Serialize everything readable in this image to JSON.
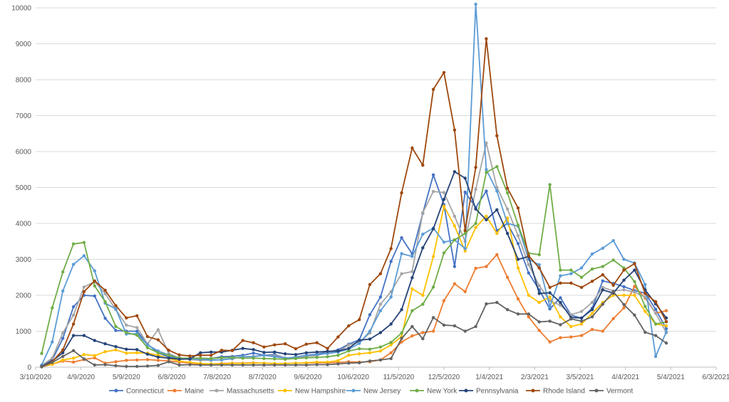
{
  "chart_data": {
    "type": "line",
    "title": "",
    "xlabel": "",
    "ylabel": "",
    "ylim": [
      0,
      10000
    ],
    "yticks": [
      0,
      1000,
      2000,
      3000,
      4000,
      5000,
      6000,
      7000,
      8000,
      9000,
      10000
    ],
    "xlim": [
      "2020-03-10",
      "2021-06-03"
    ],
    "xticks": [
      "3/10/2020",
      "4/9/2020",
      "5/9/2020",
      "6/8/2020",
      "7/8/2020",
      "8/7/2020",
      "9/6/2020",
      "10/6/2020",
      "11/5/2020",
      "12/5/2020",
      "1/4/2021",
      "2/3/2021",
      "3/5/2021",
      "4/4/2021",
      "5/4/2021",
      "6/3/2021"
    ],
    "grid": "horizontal",
    "legend": "bottom",
    "x": [
      "2020-03-14",
      "2020-03-21",
      "2020-03-28",
      "2020-04-04",
      "2020-04-11",
      "2020-04-18",
      "2020-04-25",
      "2020-05-02",
      "2020-05-09",
      "2020-05-16",
      "2020-05-23",
      "2020-05-30",
      "2020-06-06",
      "2020-06-13",
      "2020-06-20",
      "2020-06-27",
      "2020-07-04",
      "2020-07-11",
      "2020-07-18",
      "2020-07-25",
      "2020-08-01",
      "2020-08-08",
      "2020-08-15",
      "2020-08-22",
      "2020-08-29",
      "2020-09-05",
      "2020-09-12",
      "2020-09-19",
      "2020-09-26",
      "2020-10-03",
      "2020-10-10",
      "2020-10-17",
      "2020-10-24",
      "2020-10-31",
      "2020-11-07",
      "2020-11-14",
      "2020-11-21",
      "2020-11-28",
      "2020-12-05",
      "2020-12-12",
      "2020-12-19",
      "2020-12-26",
      "2021-01-02",
      "2021-01-09",
      "2021-01-16",
      "2021-01-23",
      "2021-01-30",
      "2021-02-06",
      "2021-02-13",
      "2021-02-20",
      "2021-02-27",
      "2021-03-06",
      "2021-03-13",
      "2021-03-20",
      "2021-03-27",
      "2021-04-03",
      "2021-04-10",
      "2021-04-17",
      "2021-04-24",
      "2021-05-01"
    ],
    "series": [
      {
        "name": "Connecticut",
        "color": "#4472C4",
        "values": [
          30,
          200,
          800,
          1680,
          2000,
          1980,
          1360,
          1020,
          1000,
          1000,
          640,
          400,
          280,
          250,
          230,
          220,
          240,
          290,
          300,
          330,
          390,
          330,
          350,
          250,
          280,
          330,
          360,
          420,
          480,
          640,
          760,
          1460,
          1950,
          2940,
          3600,
          3150,
          4280,
          5350,
          4520,
          2800,
          4870,
          4440,
          4900,
          3800,
          4000,
          3440,
          2620,
          2150,
          1620,
          1930,
          1450,
          1360,
          1640,
          2400,
          2330,
          2240,
          2130,
          2060,
          1610,
          1070
        ]
      },
      {
        "name": "Maine",
        "color": "#ED7D31",
        "values": [
          10,
          80,
          170,
          140,
          210,
          260,
          110,
          150,
          190,
          200,
          210,
          190,
          170,
          140,
          110,
          90,
          90,
          100,
          110,
          110,
          120,
          110,
          100,
          100,
          110,
          110,
          120,
          120,
          130,
          150,
          140,
          150,
          200,
          400,
          700,
          870,
          960,
          1000,
          1850,
          2320,
          2100,
          2750,
          2800,
          3130,
          2500,
          1900,
          1400,
          1020,
          700,
          820,
          840,
          880,
          1050,
          1000,
          1350,
          1650,
          2250,
          1920,
          1500,
          1570
        ]
      },
      {
        "name": "Massachusetts",
        "color": "#A5A5A5",
        "values": [
          50,
          250,
          950,
          1450,
          2230,
          2380,
          2050,
          1600,
          1170,
          1100,
          650,
          1040,
          380,
          250,
          210,
          190,
          190,
          210,
          230,
          290,
          300,
          330,
          320,
          250,
          260,
          300,
          320,
          400,
          420,
          620,
          690,
          950,
          1750,
          2100,
          2600,
          2660,
          4300,
          4890,
          4860,
          4200,
          3500,
          4950,
          6240,
          5000,
          4400,
          3660,
          2850,
          2270,
          1850,
          1720,
          1460,
          1550,
          1800,
          2220,
          2120,
          2150,
          2090,
          1950,
          1500,
          960
        ]
      },
      {
        "name": "New Hampshire",
        "color": "#FFC000",
        "values": [
          30,
          80,
          200,
          250,
          350,
          320,
          430,
          480,
          390,
          400,
          390,
          330,
          240,
          170,
          130,
          100,
          90,
          90,
          100,
          100,
          110,
          110,
          100,
          100,
          110,
          120,
          140,
          140,
          180,
          330,
          370,
          400,
          450,
          620,
          850,
          2180,
          2000,
          3080,
          4480,
          3930,
          3230,
          3890,
          4200,
          3720,
          4150,
          2760,
          2000,
          1800,
          1950,
          1400,
          1130,
          1200,
          1500,
          1800,
          2000,
          2000,
          2000,
          1550,
          1200,
          1150
        ]
      },
      {
        "name": "New Jersey",
        "color": "#5B9BD5",
        "values": [
          60,
          700,
          2120,
          2860,
          3100,
          2680,
          1780,
          1620,
          920,
          930,
          620,
          450,
          340,
          260,
          230,
          220,
          200,
          200,
          240,
          290,
          290,
          330,
          290,
          250,
          280,
          330,
          350,
          380,
          420,
          500,
          660,
          1000,
          1570,
          1950,
          3160,
          3080,
          3700,
          3870,
          3480,
          3540,
          3300,
          10100,
          5500,
          4900,
          4000,
          3920,
          3000,
          2850,
          1680,
          2540,
          2600,
          2760,
          3150,
          3310,
          3520,
          3000,
          2900,
          2300,
          300,
          980
        ]
      },
      {
        "name": "New York",
        "color": "#70AD47",
        "values": [
          380,
          1650,
          2650,
          3430,
          3470,
          2260,
          1820,
          1130,
          960,
          890,
          540,
          400,
          330,
          250,
          250,
          250,
          240,
          260,
          270,
          250,
          250,
          240,
          230,
          220,
          240,
          260,
          270,
          290,
          330,
          450,
          510,
          500,
          560,
          690,
          950,
          1570,
          1750,
          2230,
          3180,
          3540,
          3720,
          4000,
          5420,
          5580,
          4850,
          3950,
          3170,
          3130,
          5080,
          2700,
          2700,
          2500,
          2730,
          2800,
          2980,
          2760,
          2380,
          1690,
          1200,
          1260
        ]
      },
      {
        "name": "Pennsylvania",
        "color": "#264478",
        "values": [
          20,
          170,
          400,
          880,
          880,
          740,
          650,
          570,
          500,
          490,
          360,
          280,
          250,
          220,
          230,
          400,
          420,
          420,
          470,
          520,
          490,
          410,
          420,
          370,
          350,
          400,
          420,
          440,
          450,
          520,
          750,
          780,
          960,
          1200,
          1600,
          2490,
          3320,
          3850,
          4670,
          5440,
          5260,
          4400,
          4100,
          4380,
          3720,
          3000,
          3080,
          2050,
          2070,
          1800,
          1380,
          1370,
          1600,
          2150,
          2060,
          2420,
          2700,
          2150,
          1760,
          1370
        ]
      },
      {
        "name": "Rhode Island",
        "color": "#9E480E",
        "values": [
          10,
          150,
          480,
          1200,
          2100,
          2400,
          2140,
          1710,
          1370,
          1430,
          850,
          760,
          470,
          340,
          310,
          330,
          330,
          470,
          460,
          740,
          680,
          560,
          620,
          650,
          510,
          640,
          680,
          520,
          840,
          1150,
          1320,
          2300,
          2600,
          3300,
          4850,
          6100,
          5620,
          7730,
          8200,
          6600,
          3800,
          5560,
          9140,
          6440,
          4980,
          4430,
          3100,
          2760,
          2220,
          2340,
          2340,
          2220,
          2390,
          2570,
          2280,
          2700,
          2880,
          2050,
          1820,
          1270
        ]
      },
      {
        "name": "Vermont",
        "color": "#636363",
        "values": [
          10,
          130,
          300,
          460,
          230,
          60,
          70,
          40,
          20,
          20,
          30,
          50,
          150,
          60,
          70,
          60,
          60,
          60,
          60,
          60,
          60,
          60,
          60,
          60,
          60,
          60,
          70,
          70,
          90,
          110,
          120,
          170,
          200,
          240,
          800,
          1130,
          790,
          1380,
          1170,
          1150,
          1000,
          1130,
          1760,
          1800,
          1600,
          1480,
          1480,
          1260,
          1280,
          1180,
          1340,
          1280,
          1400,
          1750,
          2100,
          1740,
          1450,
          970,
          880,
          670
        ]
      }
    ]
  }
}
